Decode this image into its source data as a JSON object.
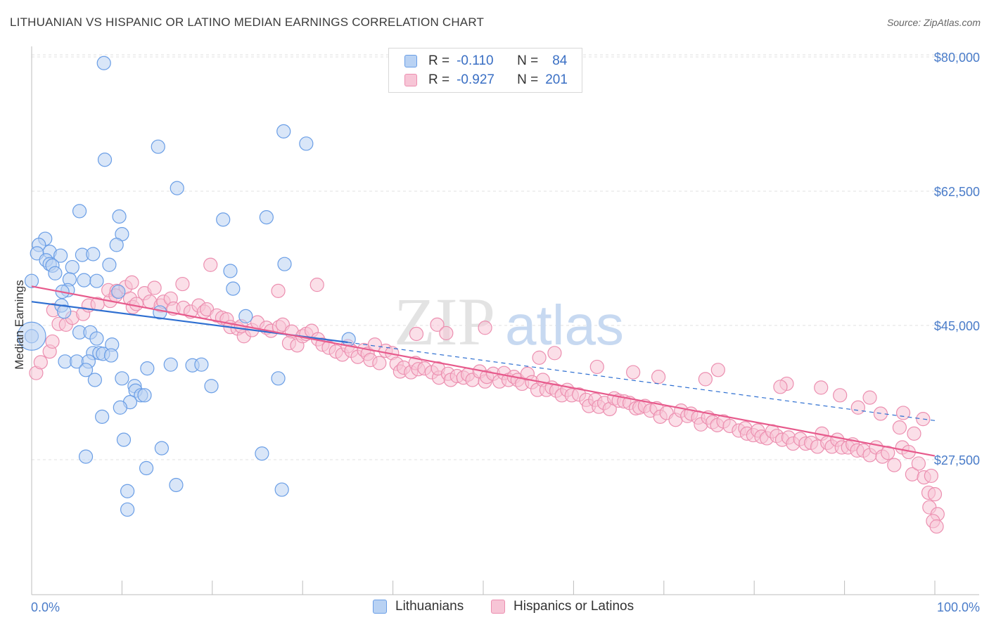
{
  "title": "LITHUANIAN VS HISPANIC OR LATINO MEDIAN EARNINGS CORRELATION CHART",
  "source": "Source: ZipAtlas.com",
  "watermark": {
    "zip": "ZIP",
    "atlas": "atlas"
  },
  "colors": {
    "blue": "#6a9ee6",
    "blue_fill": "#b9d2f3",
    "blue_line": "#2e6fd1",
    "pink": "#ec8fb0",
    "pink_fill": "#f7c5d6",
    "pink_line": "#e75a8c",
    "tick": "#4a7cc9"
  },
  "legend": {
    "rows": [
      {
        "r_label": "R =",
        "r_value": "-0.110",
        "n_label": "N =",
        "n_value": "84"
      },
      {
        "r_label": "R =",
        "r_value": "-0.927",
        "n_label": "N =",
        "n_value": "201"
      }
    ]
  },
  "bottom_legend": {
    "series1": "Lithuanians",
    "series2": "Hispanics or Latinos"
  },
  "chart_data": {
    "type": "scatter",
    "title": "LITHUANIAN VS HISPANIC OR LATINO MEDIAN EARNINGS CORRELATION CHART",
    "xlabel": "",
    "ylabel": "Median Earnings",
    "x_tick_labels": [
      "0.0%",
      "100.0%"
    ],
    "y_ticks": [
      27500,
      45000,
      62500,
      80000
    ],
    "y_tick_labels": [
      "$27,500",
      "$45,000",
      "$62,500",
      "$80,000"
    ],
    "xlim": [
      0,
      100
    ],
    "ylim": [
      10000,
      83000
    ],
    "grid": true,
    "series": [
      {
        "name": "Lithuanians",
        "R": -0.11,
        "N": 84,
        "trend": {
          "x0": 0,
          "y0": 48100,
          "x1": 35,
          "y1": 42800,
          "dashed_to_x": 100,
          "dashed_to_y": 32600
        },
        "points": [
          [
            8,
            79200
          ],
          [
            27.9,
            70300
          ],
          [
            14,
            68300
          ],
          [
            30.4,
            68700
          ],
          [
            8.1,
            66600
          ],
          [
            16.1,
            62900
          ],
          [
            5.3,
            59900
          ],
          [
            9.7,
            59200
          ],
          [
            21.2,
            58800
          ],
          [
            26,
            59100
          ],
          [
            10,
            56900
          ],
          [
            1.5,
            56300
          ],
          [
            0.8,
            55500
          ],
          [
            9.4,
            55500
          ],
          [
            0.6,
            54400
          ],
          [
            2,
            54600
          ],
          [
            3.2,
            54100
          ],
          [
            5.6,
            54200
          ],
          [
            6.8,
            54300
          ],
          [
            1.6,
            53500
          ],
          [
            2,
            53000
          ],
          [
            2.3,
            52800
          ],
          [
            4.5,
            52600
          ],
          [
            8.6,
            52900
          ],
          [
            22,
            52100
          ],
          [
            28,
            53000
          ],
          [
            2.6,
            51800
          ],
          [
            4.2,
            51000
          ],
          [
            5.8,
            50900
          ],
          [
            7.2,
            50800
          ],
          [
            0,
            50800
          ],
          [
            4,
            49600
          ],
          [
            9.6,
            49400
          ],
          [
            3.4,
            49400
          ],
          [
            22.3,
            49800
          ],
          [
            3.3,
            47600
          ],
          [
            3.6,
            46800
          ],
          [
            14.2,
            46700
          ],
          [
            23.7,
            46200
          ],
          [
            0,
            43600
          ],
          [
            5.3,
            44100
          ],
          [
            6.5,
            44100
          ],
          [
            7.2,
            43300
          ],
          [
            8.9,
            42500
          ],
          [
            35.1,
            43200
          ],
          [
            6.8,
            41400
          ],
          [
            7.5,
            41400
          ],
          [
            7.9,
            41300
          ],
          [
            8.8,
            41100
          ],
          [
            3.7,
            40300
          ],
          [
            5,
            40300
          ],
          [
            6.3,
            40300
          ],
          [
            15.4,
            39900
          ],
          [
            17.8,
            39800
          ],
          [
            12.8,
            39400
          ],
          [
            6,
            39200
          ],
          [
            18.8,
            39900
          ],
          [
            10,
            38100
          ],
          [
            27.3,
            38100
          ],
          [
            7,
            37900
          ],
          [
            11.4,
            37100
          ],
          [
            19.9,
            37100
          ],
          [
            11.5,
            36500
          ],
          [
            12.1,
            35900
          ],
          [
            12.5,
            35900
          ],
          [
            10.9,
            35000
          ],
          [
            9.8,
            34300
          ],
          [
            7.8,
            33100
          ],
          [
            10.2,
            30100
          ],
          [
            14.4,
            29000
          ],
          [
            6,
            27900
          ],
          [
            25.5,
            28300
          ],
          [
            12.7,
            26400
          ],
          [
            27.7,
            23600
          ],
          [
            16,
            24200
          ],
          [
            10.6,
            23400
          ],
          [
            10.6,
            21000
          ]
        ]
      },
      {
        "name": "Hispanics or Latinos",
        "R": -0.927,
        "N": 201,
        "trend": {
          "x0": 0,
          "y0": 50100,
          "x1": 100,
          "y1": 28000
        },
        "points": [
          [
            0.5,
            38800
          ],
          [
            1,
            40200
          ],
          [
            2,
            41600
          ],
          [
            2.3,
            42900
          ],
          [
            3,
            45200
          ],
          [
            3.8,
            45100
          ],
          [
            2.4,
            47000
          ],
          [
            4.5,
            46000
          ],
          [
            5.7,
            46500
          ],
          [
            6.3,
            47600
          ],
          [
            7.3,
            47800
          ],
          [
            8.7,
            48200
          ],
          [
            8.5,
            49600
          ],
          [
            9.4,
            49500
          ],
          [
            10.4,
            50000
          ],
          [
            11.1,
            50600
          ],
          [
            10.9,
            48500
          ],
          [
            11.2,
            47400
          ],
          [
            11.6,
            47800
          ],
          [
            12.5,
            49200
          ],
          [
            13.1,
            48100
          ],
          [
            13.6,
            49900
          ],
          [
            14.3,
            47600
          ],
          [
            14.6,
            48100
          ],
          [
            15.4,
            48500
          ],
          [
            15.7,
            47200
          ],
          [
            16.7,
            50400
          ],
          [
            16.8,
            47300
          ],
          [
            17.6,
            46800
          ],
          [
            18.5,
            47600
          ],
          [
            19.1,
            46800
          ],
          [
            19.4,
            47100
          ],
          [
            20.5,
            46300
          ],
          [
            21.1,
            46000
          ],
          [
            21.6,
            45800
          ],
          [
            22,
            44800
          ],
          [
            22.8,
            44600
          ],
          [
            23.5,
            43600
          ],
          [
            23.2,
            44900
          ],
          [
            24.4,
            44400
          ],
          [
            25,
            45400
          ],
          [
            26,
            44700
          ],
          [
            26.5,
            44300
          ],
          [
            27.4,
            44800
          ],
          [
            27.8,
            45100
          ],
          [
            28.8,
            44200
          ],
          [
            28.5,
            42700
          ],
          [
            29.4,
            42400
          ],
          [
            30,
            43600
          ],
          [
            30.4,
            43900
          ],
          [
            31,
            44300
          ],
          [
            31.7,
            43200
          ],
          [
            32.2,
            42500
          ],
          [
            32.9,
            42100
          ],
          [
            33.7,
            41600
          ],
          [
            34.4,
            41200
          ],
          [
            35,
            42300
          ],
          [
            35.4,
            41700
          ],
          [
            36.1,
            40900
          ],
          [
            36.8,
            41800
          ],
          [
            37.2,
            41300
          ],
          [
            38,
            42500
          ],
          [
            37.5,
            40500
          ],
          [
            38.5,
            40100
          ],
          [
            39.2,
            41700
          ],
          [
            39.9,
            41400
          ],
          [
            40.4,
            40000
          ],
          [
            40.8,
            39000
          ],
          [
            41.2,
            39500
          ],
          [
            42,
            38900
          ],
          [
            42.5,
            40100
          ],
          [
            42.8,
            39300
          ],
          [
            43.5,
            39400
          ],
          [
            44.3,
            38900
          ],
          [
            45.1,
            38200
          ],
          [
            45,
            39400
          ],
          [
            46.1,
            38700
          ],
          [
            46.4,
            37900
          ],
          [
            47.1,
            38400
          ],
          [
            47.8,
            38200
          ],
          [
            48.3,
            38600
          ],
          [
            48.8,
            37900
          ],
          [
            49.6,
            39000
          ],
          [
            50.2,
            37700
          ],
          [
            50.4,
            38300
          ],
          [
            51.1,
            38700
          ],
          [
            51.8,
            37700
          ],
          [
            52.3,
            38800
          ],
          [
            52.8,
            37900
          ],
          [
            53.4,
            38300
          ],
          [
            53.8,
            37900
          ],
          [
            54.3,
            37400
          ],
          [
            54.9,
            38700
          ],
          [
            55.4,
            37600
          ],
          [
            56,
            36600
          ],
          [
            56.6,
            37900
          ],
          [
            57,
            36600
          ],
          [
            57.6,
            36900
          ],
          [
            58.1,
            36500
          ],
          [
            58.7,
            35900
          ],
          [
            59.3,
            36600
          ],
          [
            59.8,
            35900
          ],
          [
            60.6,
            36000
          ],
          [
            61.4,
            35300
          ],
          [
            61.7,
            34500
          ],
          [
            62.4,
            35300
          ],
          [
            62.8,
            34400
          ],
          [
            63.4,
            34900
          ],
          [
            64,
            34100
          ],
          [
            64.5,
            35500
          ],
          [
            65,
            35200
          ],
          [
            65.6,
            35100
          ],
          [
            66.2,
            34900
          ],
          [
            66.9,
            34200
          ],
          [
            67.3,
            34300
          ],
          [
            67.9,
            34500
          ],
          [
            68.5,
            33900
          ],
          [
            69.2,
            34200
          ],
          [
            69.6,
            33100
          ],
          [
            70.3,
            33600
          ],
          [
            71.3,
            32700
          ],
          [
            71.9,
            33900
          ],
          [
            72.6,
            33200
          ],
          [
            73,
            33500
          ],
          [
            73.8,
            33000
          ],
          [
            74.1,
            32100
          ],
          [
            74.9,
            33000
          ],
          [
            75.4,
            32400
          ],
          [
            75.9,
            32000
          ],
          [
            76.6,
            32500
          ],
          [
            77.3,
            31900
          ],
          [
            78.3,
            31300
          ],
          [
            79,
            31600
          ],
          [
            79.2,
            30900
          ],
          [
            79.9,
            30700
          ],
          [
            80.4,
            31300
          ],
          [
            80.8,
            30500
          ],
          [
            81.4,
            30300
          ],
          [
            82,
            31200
          ],
          [
            82.5,
            30600
          ],
          [
            83.1,
            30100
          ],
          [
            83.8,
            30400
          ],
          [
            84.3,
            29600
          ],
          [
            85.1,
            30200
          ],
          [
            85.7,
            29600
          ],
          [
            86.3,
            29700
          ],
          [
            87,
            29200
          ],
          [
            87.5,
            30900
          ],
          [
            88.1,
            29700
          ],
          [
            88.6,
            29200
          ],
          [
            89.2,
            30100
          ],
          [
            89.7,
            29100
          ],
          [
            90.4,
            29100
          ],
          [
            90.9,
            29500
          ],
          [
            91.4,
            28700
          ],
          [
            92.1,
            28700
          ],
          [
            92.8,
            28100
          ],
          [
            93.5,
            29100
          ],
          [
            94.2,
            27900
          ],
          [
            94.8,
            28400
          ],
          [
            95.5,
            26800
          ],
          [
            96.4,
            29100
          ],
          [
            97.1,
            28500
          ],
          [
            97.5,
            25600
          ],
          [
            98.2,
            27000
          ],
          [
            98.8,
            25200
          ],
          [
            99.6,
            25400
          ],
          [
            99.3,
            23200
          ],
          [
            100,
            23000
          ],
          [
            99.4,
            21300
          ],
          [
            100.3,
            20400
          ],
          [
            99.8,
            19500
          ],
          [
            100.2,
            18800
          ],
          [
            44.9,
            45100
          ],
          [
            50.2,
            44700
          ],
          [
            57.9,
            41400
          ],
          [
            62.6,
            39600
          ],
          [
            69.4,
            38300
          ],
          [
            76,
            39200
          ],
          [
            83.6,
            37400
          ],
          [
            92.8,
            35600
          ],
          [
            96.5,
            33600
          ],
          [
            98.7,
            32800
          ],
          [
            9.3,
            48900
          ],
          [
            19.8,
            52900
          ],
          [
            27.3,
            49500
          ],
          [
            31.6,
            50300
          ],
          [
            42.6,
            43900
          ],
          [
            45.9,
            44000
          ],
          [
            56.2,
            40800
          ],
          [
            66.6,
            38900
          ],
          [
            74.6,
            38000
          ],
          [
            82.9,
            37000
          ],
          [
            87.4,
            36900
          ],
          [
            89.5,
            35900
          ],
          [
            91.5,
            34300
          ],
          [
            94,
            33500
          ],
          [
            96.1,
            31700
          ],
          [
            97.7,
            30900
          ]
        ]
      }
    ]
  }
}
